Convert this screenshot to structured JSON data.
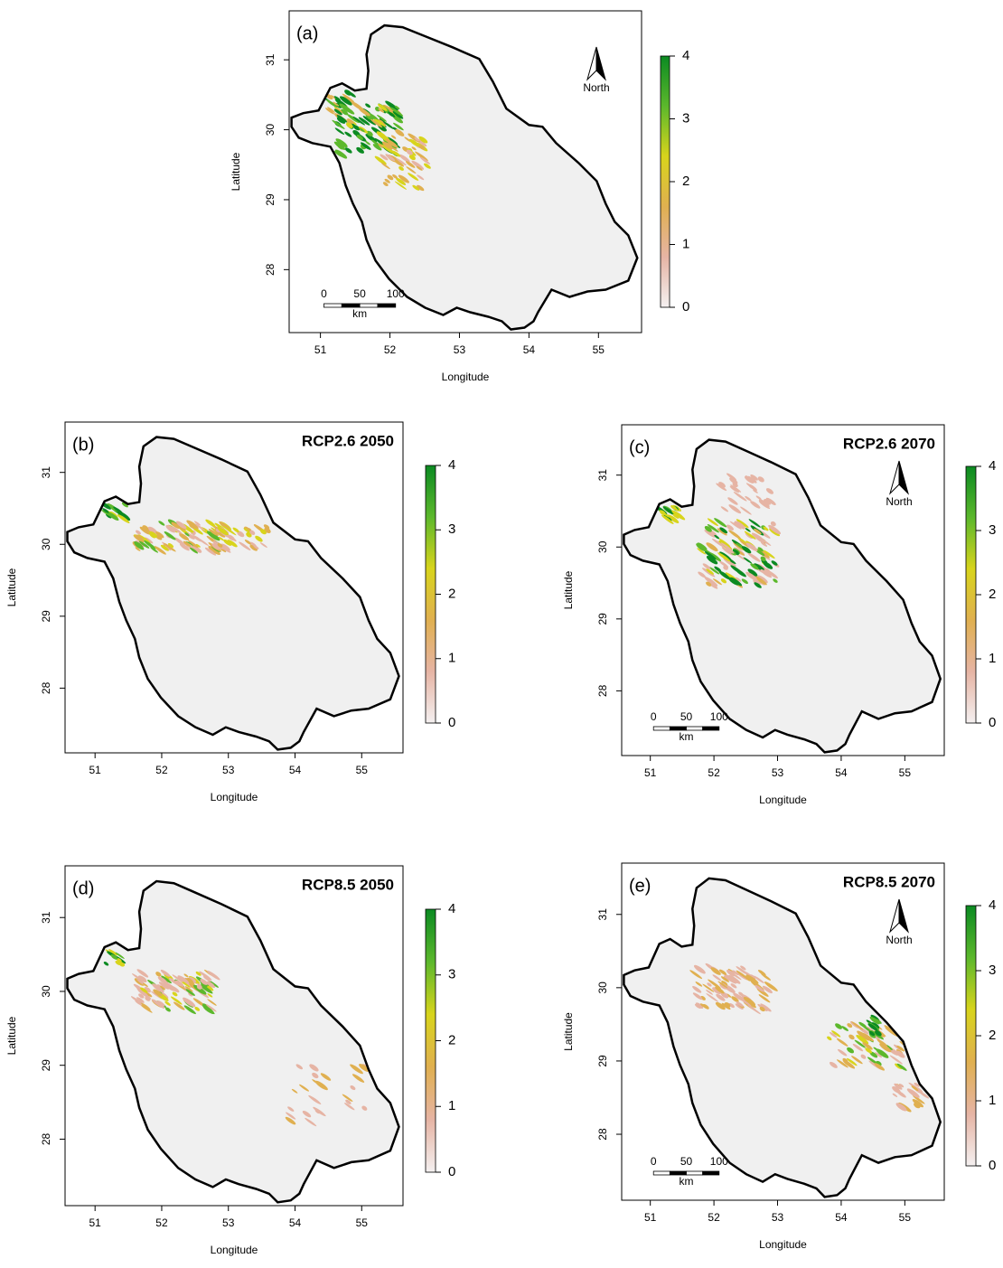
{
  "panels": [
    {
      "label": "(a)",
      "xlabel": "Longitude",
      "ylabel": "Latitude",
      "xlim": [
        50.55,
        55.62
      ],
      "ylim": [
        27.1,
        31.7
      ],
      "xticks": [
        51,
        52,
        53,
        54,
        55
      ],
      "yticks": [
        28,
        29,
        30,
        31
      ],
      "colorbar": {
        "lim": [
          0,
          4
        ],
        "ticks": [
          0,
          1,
          2,
          3,
          4
        ]
      },
      "north": "North",
      "scale_bar": {
        "ticks": [
          0,
          50,
          100
        ],
        "unit": "km"
      }
    },
    {
      "label": "(b)",
      "title": "RCP2.6 2050",
      "xlabel": "Longitude",
      "ylabel": "Latitude",
      "xlim": [
        50.55,
        55.62
      ],
      "ylim": [
        27.1,
        31.7
      ],
      "xticks": [
        51,
        52,
        53,
        54,
        55
      ],
      "yticks": [
        28,
        29,
        30,
        31
      ],
      "colorbar": {
        "lim": [
          0,
          4
        ],
        "ticks": [
          0,
          1,
          2,
          3,
          4
        ]
      }
    },
    {
      "label": "(c)",
      "title": "RCP2.6 2070",
      "xlabel": "Longitude",
      "ylabel": "Latitude",
      "xlim": [
        50.55,
        55.62
      ],
      "ylim": [
        27.1,
        31.7
      ],
      "xticks": [
        51,
        52,
        53,
        54,
        55
      ],
      "yticks": [
        28,
        29,
        30,
        31
      ],
      "colorbar": {
        "lim": [
          0,
          4
        ],
        "ticks": [
          0,
          1,
          2,
          3,
          4
        ]
      },
      "north": "North",
      "scale_bar": {
        "ticks": [
          0,
          50,
          100
        ],
        "unit": "km"
      }
    },
    {
      "label": "(d)",
      "title": "RCP8.5 2050",
      "xlabel": "Longitude",
      "ylabel": "Latitude",
      "xlim": [
        50.55,
        55.62
      ],
      "ylim": [
        27.1,
        31.7
      ],
      "xticks": [
        51,
        52,
        53,
        54,
        55
      ],
      "yticks": [
        28,
        29,
        30,
        31
      ],
      "colorbar": {
        "lim": [
          0,
          4
        ],
        "ticks": [
          0,
          1,
          2,
          3,
          4
        ]
      }
    },
    {
      "label": "(e)",
      "title": "RCP8.5 2070",
      "xlabel": "Longitude",
      "ylabel": "Latitude",
      "xlim": [
        50.55,
        55.62
      ],
      "ylim": [
        27.1,
        31.7
      ],
      "xticks": [
        51,
        52,
        53,
        54,
        55
      ],
      "yticks": [
        28,
        29,
        30,
        31
      ],
      "colorbar": {
        "lim": [
          0,
          4
        ],
        "ticks": [
          0,
          1,
          2,
          3,
          4
        ]
      },
      "north": "North",
      "scale_bar": {
        "ticks": [
          0,
          50,
          100
        ],
        "unit": "km"
      }
    }
  ],
  "colorscale": [
    "#f4f0f0",
    "#e6b4a4",
    "#e0b050",
    "#d8d41c",
    "#5cb82c",
    "#0b8a22"
  ]
}
